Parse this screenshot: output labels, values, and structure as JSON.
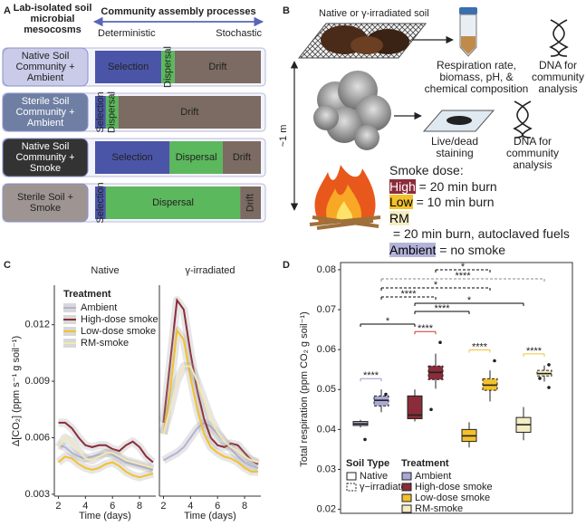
{
  "panel_labels": [
    "A",
    "B",
    "C",
    "D"
  ],
  "diagram": {
    "soil_label": "Native or γ-irradiated soil",
    "analysis_1": "Respiration rate, biomass, pH, & chemical composition",
    "dna_1": "DNA for community analysis",
    "distance": "~1 m",
    "analysis_2": "Live/dead staining",
    "dna_2": "DNA for community analysis",
    "dose_title": "Smoke dose:",
    "doses": [
      {
        "name": "High",
        "desc": " = 20 min burn",
        "color": "#8b2c3a",
        "text_color": "#ffffff"
      },
      {
        "name": "Low",
        "desc": " = 10 min burn",
        "color": "#f3c12d",
        "text_color": "#000000"
      },
      {
        "name": "RM",
        "desc": " = 20 min burn, autoclaved fuels",
        "color": "#f5edc4",
        "text_color": "#000000"
      },
      {
        "name": "Ambient",
        "desc": " = no smoke",
        "color": "#b3b3d9",
        "text_color": "#000000"
      }
    ]
  },
  "chart_data": [
    {
      "type": "bar",
      "orientation": "horizontal",
      "stacked": true,
      "title": "Community assembly processes",
      "category_title": "Lab-isolated soil microbial mesocosms",
      "xlabel_left": "Deterministic",
      "xlabel_right": "Stochastic",
      "categories": [
        "Native Soil Community + Ambient",
        "Sterile Soil Community + Ambient",
        "Native Soil Community + Smoke",
        "Sterile Soil + Smoke"
      ],
      "category_colors": [
        "#c9cbe8",
        "#6f7fa3",
        "#333333",
        "#9e9593"
      ],
      "xlim": [
        0,
        100
      ],
      "series": [
        {
          "name": "Selection",
          "color": "#4a55a8",
          "values": [
            40,
            6.5,
            45,
            6.5
          ]
        },
        {
          "name": "Dispersal",
          "color": "#5cb85c",
          "values": [
            8,
            7.5,
            32,
            81
          ]
        },
        {
          "name": "Drift",
          "color": "#7b6b62",
          "values": [
            52,
            86,
            23,
            12.5
          ]
        }
      ]
    },
    {
      "type": "line",
      "ylabel": "Δ[CO₂] (ppm s⁻¹ g soil⁻¹)",
      "xlabel": "Time (days)",
      "legend_title": "Treatment",
      "legend": "upper left",
      "x": [
        2,
        2.5,
        3,
        3.5,
        4,
        4.5,
        5,
        5.5,
        6,
        6.5,
        7,
        7.5,
        8,
        8.5,
        9
      ],
      "xlim": [
        1.7,
        9.2
      ],
      "xticks": [
        2,
        4,
        6,
        8
      ],
      "ylim": [
        0.0029,
        0.0141
      ],
      "yticks": [
        0.003,
        0.006,
        0.009,
        0.012
      ],
      "panels": [
        {
          "name": "Native",
          "series": [
            {
              "name": "Ambient",
              "color": "#b3b3d9",
              "values": [
                0.0056,
                0.0055,
                0.0052,
                0.005,
                0.0049,
                0.005,
                0.0051,
                0.0052,
                0.0051,
                0.0049,
                0.0047,
                0.0046,
                0.0045,
                0.0044,
                0.0043
              ]
            },
            {
              "name": "High-dose smoke",
              "color": "#8b2c3a",
              "values": [
                0.0068,
                0.0068,
                0.0065,
                0.006,
                0.0056,
                0.0055,
                0.0056,
                0.0056,
                0.0054,
                0.0053,
                0.0056,
                0.0058,
                0.0055,
                0.005,
                0.0047
              ]
            },
            {
              "name": "Low-dose smoke",
              "color": "#f3c12d",
              "values": [
                0.0047,
                0.005,
                0.0049,
                0.0046,
                0.0044,
                0.0043,
                0.0044,
                0.0046,
                0.0047,
                0.0045,
                0.0042,
                0.004,
                0.0039,
                0.004,
                0.0041
              ]
            },
            {
              "name": "RM-smoke",
              "color": "#f2e7b5",
              "values": [
                0.0055,
                0.006,
                0.0058,
                0.0053,
                0.0049,
                0.0048,
                0.005,
                0.0052,
                0.0052,
                0.005,
                0.0048,
                0.0047,
                0.0046,
                0.0045,
                0.0044
              ]
            }
          ]
        },
        {
          "name": "γ-irradiated",
          "series": [
            {
              "name": "Ambient",
              "color": "#b3b3d9",
              "values": [
                0.0048,
                0.005,
                0.0052,
                0.0055,
                0.006,
                0.0065,
                0.0068,
                0.0066,
                0.0062,
                0.0058,
                0.0054,
                0.005,
                0.0047,
                0.0045,
                0.0044
              ]
            },
            {
              "name": "High-dose smoke",
              "color": "#8b2c3a",
              "values": [
                0.0068,
                0.01,
                0.0133,
                0.0128,
                0.0105,
                0.0085,
                0.007,
                0.006,
                0.0056,
                0.0055,
                0.0057,
                0.0056,
                0.0052,
                0.0048,
                0.0046
              ]
            },
            {
              "name": "Low-dose smoke",
              "color": "#f3c12d",
              "values": [
                0.0062,
                0.0085,
                0.0117,
                0.0112,
                0.0092,
                0.0075,
                0.0062,
                0.0055,
                0.0052,
                0.005,
                0.0049,
                0.0047,
                0.0044,
                0.0042,
                0.0042
              ]
            },
            {
              "name": "RM-smoke",
              "color": "#f2e7b5",
              "values": [
                0.0062,
                0.0075,
                0.009,
                0.0098,
                0.0098,
                0.009,
                0.008,
                0.007,
                0.0063,
                0.0058,
                0.0055,
                0.0053,
                0.005,
                0.0048,
                0.0047
              ]
            }
          ]
        }
      ]
    },
    {
      "type": "box",
      "ylabel": "Total respiration (ppm CO₂ g soil⁻¹)",
      "ylim": [
        0.019,
        0.0818
      ],
      "yticks": [
        0.02,
        0.03,
        0.04,
        0.05,
        0.06,
        0.07,
        0.08
      ],
      "soil_title": "Soil Type",
      "soil_types": [
        {
          "name": "Native",
          "style": "solid"
        },
        {
          "name": "γ−irradiated",
          "style": "dashed"
        }
      ],
      "treatment_title": "Treatment",
      "treatments": [
        {
          "name": "Ambient",
          "color": "#a9a9d4"
        },
        {
          "name": "High-dose smoke",
          "color": "#8b2c3a"
        },
        {
          "name": "Low-dose smoke",
          "color": "#f3c12d"
        },
        {
          "name": "RM-smoke",
          "color": "#f5edc4"
        }
      ],
      "groups": [
        {
          "treatment": "Ambient",
          "soil": "Native",
          "min": 0.0405,
          "q1": 0.041,
          "median": 0.0414,
          "q3": 0.042,
          "max": 0.0424,
          "outliers": [
            0.0375
          ]
        },
        {
          "treatment": "Ambient",
          "soil": "γ−irradiated",
          "min": 0.0443,
          "q1": 0.0459,
          "median": 0.0473,
          "q3": 0.0484,
          "max": 0.05,
          "outliers": [
            0.0488
          ]
        },
        {
          "treatment": "High-dose smoke",
          "soil": "Native",
          "min": 0.042,
          "q1": 0.0427,
          "median": 0.0436,
          "q3": 0.0484,
          "max": 0.05,
          "outliers": []
        },
        {
          "treatment": "High-dose smoke",
          "soil": "γ−irradiated",
          "min": 0.0502,
          "q1": 0.0525,
          "median": 0.0543,
          "q3": 0.0559,
          "max": 0.059,
          "outliers": [
            0.0618,
            0.045
          ]
        },
        {
          "treatment": "Low-dose smoke",
          "soil": "Native",
          "min": 0.0355,
          "q1": 0.037,
          "median": 0.0384,
          "q3": 0.04,
          "max": 0.0418,
          "outliers": []
        },
        {
          "treatment": "Low-dose smoke",
          "soil": "γ−irradiated",
          "min": 0.047,
          "q1": 0.0498,
          "median": 0.0511,
          "q3": 0.0527,
          "max": 0.0548,
          "outliers": [
            0.0572
          ]
        },
        {
          "treatment": "RM-smoke",
          "soil": "Native",
          "min": 0.0373,
          "q1": 0.0393,
          "median": 0.0412,
          "q3": 0.043,
          "max": 0.0456,
          "outliers": []
        },
        {
          "treatment": "RM-smoke",
          "soil": "γ−irradiated",
          "min": 0.052,
          "q1": 0.0534,
          "median": 0.054,
          "q3": 0.0548,
          "max": 0.056,
          "outliers": [
            0.0562,
            0.0528,
            0.0505
          ]
        }
      ],
      "brackets": [
        {
          "groups": [
            3,
            5
          ],
          "label": "*",
          "color": "#000000",
          "style": "dashed"
        },
        {
          "groups": [
            1,
            7
          ],
          "label": "****",
          "color": "#888888",
          "style": "dashed"
        },
        {
          "groups": [
            1,
            5
          ],
          "label": "*",
          "color": "#000000",
          "style": "dashed"
        },
        {
          "groups": [
            1,
            3
          ],
          "label": "****",
          "color": "#000000",
          "style": "dashed"
        },
        {
          "groups": [
            2,
            6
          ],
          "label": "*",
          "color": "#000000",
          "style": "solid"
        },
        {
          "groups": [
            2,
            4
          ],
          "label": "****",
          "color": "#000000",
          "style": "solid"
        },
        {
          "groups": [
            0,
            2
          ],
          "label": "*",
          "color": "#000000",
          "style": "solid"
        },
        {
          "groups": [
            2,
            3
          ],
          "label": "****",
          "color": "#d03030",
          "style": "solid"
        },
        {
          "groups": [
            0,
            1
          ],
          "label": "****",
          "color": "#9a9ac8",
          "style": "solid"
        },
        {
          "groups": [
            4,
            5
          ],
          "label": "****",
          "color": "#f3c12d",
          "style": "solid"
        },
        {
          "groups": [
            6,
            7
          ],
          "label": "****",
          "color": "#f3c12d",
          "style": "solid"
        }
      ]
    }
  ]
}
